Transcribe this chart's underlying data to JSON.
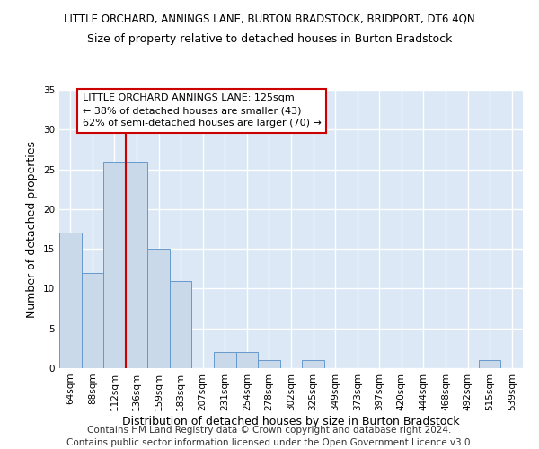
{
  "title": "LITTLE ORCHARD, ANNINGS LANE, BURTON BRADSTOCK, BRIDPORT, DT6 4QN",
  "subtitle": "Size of property relative to detached houses in Burton Bradstock",
  "xlabel": "Distribution of detached houses by size in Burton Bradstock",
  "ylabel": "Number of detached properties",
  "bin_labels": [
    "64sqm",
    "88sqm",
    "112sqm",
    "136sqm",
    "159sqm",
    "183sqm",
    "207sqm",
    "231sqm",
    "254sqm",
    "278sqm",
    "302sqm",
    "325sqm",
    "349sqm",
    "373sqm",
    "397sqm",
    "420sqm",
    "444sqm",
    "468sqm",
    "492sqm",
    "515sqm",
    "539sqm"
  ],
  "bar_values": [
    17,
    12,
    26,
    26,
    15,
    11,
    0,
    2,
    2,
    1,
    0,
    1,
    0,
    0,
    0,
    0,
    0,
    0,
    0,
    1,
    0
  ],
  "bar_color": "#c9d9ea",
  "bar_edge_color": "#6699cc",
  "vline_x": 3.0,
  "vline_color": "#cc0000",
  "annotation_text": "LITTLE ORCHARD ANNINGS LANE: 125sqm\n← 38% of detached houses are smaller (43)\n62% of semi-detached houses are larger (70) →",
  "annotation_box_facecolor": "#ffffff",
  "annotation_box_edgecolor": "#cc0000",
  "footer_text": "Contains HM Land Registry data © Crown copyright and database right 2024.\nContains public sector information licensed under the Open Government Licence v3.0.",
  "ylim": [
    0,
    35
  ],
  "yticks": [
    0,
    5,
    10,
    15,
    20,
    25,
    30,
    35
  ],
  "background_color": "#dce8f5",
  "grid_color": "#ffffff",
  "title_fontsize": 8.5,
  "subtitle_fontsize": 9,
  "axis_label_fontsize": 9,
  "tick_fontsize": 7.5,
  "annotation_fontsize": 8,
  "footer_fontsize": 7.5
}
